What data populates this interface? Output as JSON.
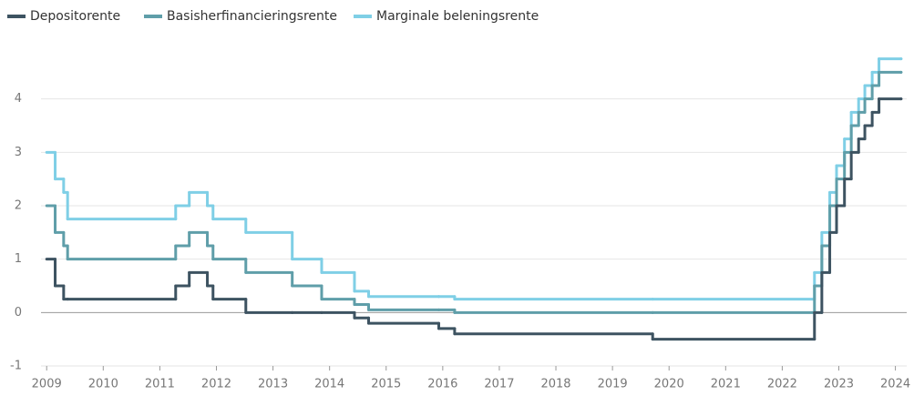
{
  "chart_data": {
    "type": "line",
    "step": "post",
    "x": [
      2009.0,
      2009.15,
      2009.3,
      2009.37,
      2011.28,
      2011.52,
      2011.84,
      2011.94,
      2012.52,
      2013.34,
      2013.86,
      2014.44,
      2014.69,
      2015.93,
      2016.21,
      2019.71,
      2022.57,
      2022.7,
      2022.84,
      2022.96,
      2023.1,
      2023.22,
      2023.35,
      2023.46,
      2023.59,
      2023.71,
      2024.1
    ],
    "series": [
      {
        "name": "Depositorente",
        "color": "#3d5361",
        "values": [
          1.0,
          0.5,
          0.25,
          0.25,
          0.5,
          0.75,
          0.5,
          0.25,
          0.0,
          0.0,
          0.0,
          -0.1,
          -0.2,
          -0.3,
          -0.4,
          -0.5,
          0.0,
          0.75,
          1.5,
          2.0,
          2.5,
          3.0,
          3.25,
          3.5,
          3.75,
          4.0,
          4.0
        ]
      },
      {
        "name": "Basisherfinancieringsrente",
        "color": "#5f9ea9",
        "values": [
          2.0,
          1.5,
          1.25,
          1.0,
          1.25,
          1.5,
          1.25,
          1.0,
          0.75,
          0.5,
          0.25,
          0.15,
          0.05,
          0.05,
          0.0,
          0.0,
          0.5,
          1.25,
          2.0,
          2.5,
          3.0,
          3.5,
          3.75,
          4.0,
          4.25,
          4.5,
          4.5
        ]
      },
      {
        "name": "Marginale beleningsrente",
        "color": "#7fcfe6",
        "values": [
          3.0,
          2.5,
          2.25,
          1.75,
          2.0,
          2.25,
          2.0,
          1.75,
          1.5,
          1.0,
          0.75,
          0.4,
          0.3,
          0.3,
          0.25,
          0.25,
          0.75,
          1.5,
          2.25,
          2.75,
          3.25,
          3.75,
          4.0,
          4.25,
          4.5,
          4.75,
          4.75
        ]
      }
    ],
    "xlim": [
      2008.9,
      2024.2
    ],
    "xticks": [
      2009,
      2010,
      2011,
      2012,
      2013,
      2014,
      2015,
      2016,
      2017,
      2018,
      2019,
      2020,
      2021,
      2022,
      2023,
      2024
    ],
    "ylim": [
      -1,
      5
    ],
    "yticks": [
      -1,
      0,
      1,
      2,
      3,
      4
    ],
    "grid": true,
    "legend": "top-left"
  }
}
